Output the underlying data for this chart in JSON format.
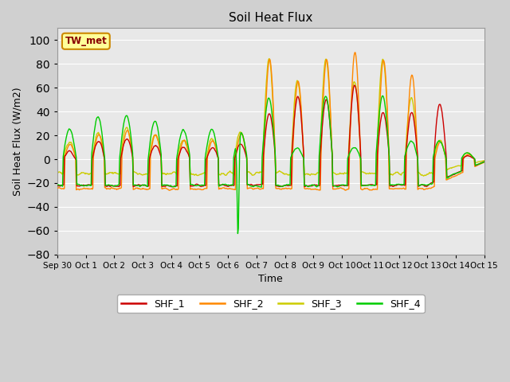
{
  "title": "Soil Heat Flux",
  "ylabel": "Soil Heat Flux (W/m2)",
  "xlabel": "Time",
  "ylim": [
    -80,
    110
  ],
  "yticks": [
    -80,
    -60,
    -40,
    -20,
    0,
    20,
    40,
    60,
    80,
    100
  ],
  "colors": {
    "SHF_1": "#cc0000",
    "SHF_2": "#ff8800",
    "SHF_3": "#cccc00",
    "SHF_4": "#00cc00"
  },
  "fig_bg": "#d0d0d0",
  "plot_bg": "#e8e8e8",
  "grid_color": "#ffffff",
  "legend_box_color": "#ffff99",
  "legend_box_edge": "#cc8800",
  "annotation_text": "TW_met",
  "annotation_color": "#880000",
  "linewidth": 1.0,
  "total_days": 15,
  "hours_per_day": 48
}
